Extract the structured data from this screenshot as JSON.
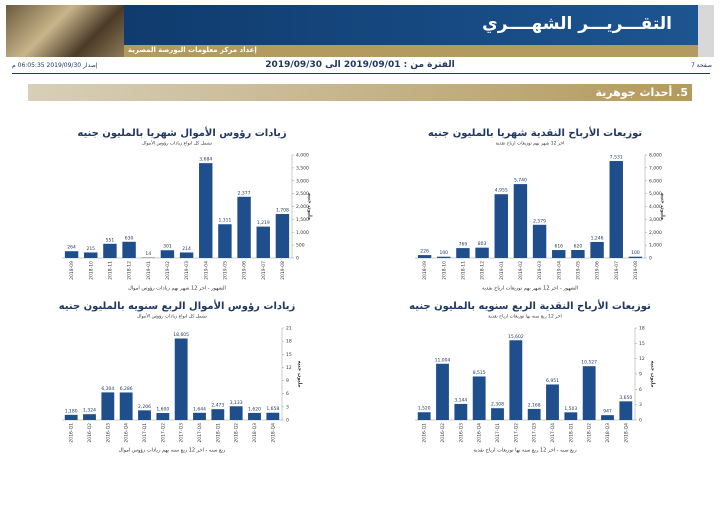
{
  "header": {
    "title": "التقـــريـــر الشهــــري",
    "prepared_by": "إعداد مركز معلومات البورصة المصرية",
    "page": "صفحة 7",
    "period": "الفترة من : 2019/09/01 الى 2019/09/30",
    "issued": "إصدار 2019/09/30 06:05:35 م",
    "section": "5. أحداث جوهرية"
  },
  "chart_data": [
    {
      "type": "bar",
      "title": "زيادات رؤوس الأموال شهريا بالمليون جنيه",
      "subtitle": "تشمل كل انواع زيادات رؤوس الأموال",
      "x_label": "الشهور - اخر 12 شهر بهم زيادات رؤوس اموال",
      "y_label": "مليون جنيه",
      "color": "#1f4e8c",
      "categories": [
        "2018-09",
        "2018-10",
        "2018-11",
        "2018-12",
        "2019-01",
        "2019-02",
        "2019-03",
        "2019-04",
        "2019-05",
        "2019-06",
        "2019-07",
        "2019-08"
      ],
      "values": [
        264,
        215,
        551,
        630,
        14,
        301,
        214,
        3684,
        1311,
        2377,
        1219,
        1708
      ],
      "value_labels": [
        "264",
        "215",
        "551",
        "630",
        "14",
        "301",
        "214",
        "3,684",
        "1,311",
        "2,377",
        "1,219",
        "1,708"
      ],
      "ylim": [
        0,
        4000
      ],
      "yticks": [
        0,
        500,
        {
          "value": 1000,
          "label": "1,000"
        },
        {
          "value": 1500,
          "label": "1,500"
        },
        {
          "value": 2000,
          "label": "2,000"
        },
        {
          "value": 2500,
          "label": "2,500"
        },
        {
          "value": 3000,
          "label": "3,000"
        },
        {
          "value": 3500,
          "label": "3,500"
        },
        {
          "value": 4000,
          "label": "4,000"
        }
      ]
    },
    {
      "type": "bar",
      "title": "توزيعات الأرباح النقدية شهريا بالمليون جنيه",
      "subtitle": "اخر 12 شهر بهم توزيعات ارباح نقدية",
      "x_label": "الشهور - اخر 12 شهر بهم توزيعات ارباح نقدية",
      "y_label": "مليون جنيه",
      "color": "#1f4e8c",
      "categories": [
        "2018-09",
        "2018-10",
        "2018-11",
        "2018-12",
        "2019-01",
        "2019-02",
        "2019-03",
        "2019-04",
        "2019-05",
        "2019-06",
        "2019-07",
        "2019-08"
      ],
      "values": [
        226,
        100,
        769,
        803,
        4955,
        5740,
        2579,
        616,
        620,
        1246,
        7531,
        100
      ],
      "value_labels": [
        "226",
        "100",
        "769",
        "803",
        "4,955",
        "5,740",
        "2,579",
        "616",
        "620",
        "1,246",
        "7,531",
        "100"
      ],
      "ylim": [
        0,
        8000
      ],
      "yticks": [
        0,
        {
          "value": 1000,
          "label": "1,000"
        },
        {
          "value": 2000,
          "label": "2,000"
        },
        {
          "value": 3000,
          "label": "3,000"
        },
        {
          "value": 4000,
          "label": "4,000"
        },
        {
          "value": 5000,
          "label": "5,000"
        },
        {
          "value": 6000,
          "label": "6,000"
        },
        {
          "value": 7000,
          "label": "7,000"
        },
        {
          "value": 8000,
          "label": "8,000"
        }
      ]
    },
    {
      "type": "bar",
      "title": "زيادات رؤوس الأموال الربع سنويه بالمليون جنيه",
      "subtitle": "تشمل كل انواع زيادات رؤوس الأموال",
      "x_label": "ربع سنه - اخر 12 ربع سنه بهم زيادات رؤوس اموال",
      "y_label": "مليون جنيه",
      "color": "#1f4e8c",
      "categories": [
        "2016-Q1",
        "2016-Q2",
        "2016-Q3",
        "2016-Q4",
        "2017-Q1",
        "2017-Q2",
        "2017-Q3",
        "2017-Q4",
        "2018-Q1",
        "2018-Q2",
        "2018-Q3",
        "2018-Q4"
      ],
      "values": [
        1.18,
        1.324,
        6.304,
        6.286,
        2.206,
        1.6,
        18.605,
        1.644,
        2.473,
        3.133,
        1.62,
        1.658
      ],
      "value_labels": [
        "1,180",
        "1,324",
        "6,304",
        "6,286",
        "2,206",
        "1,600",
        "18,605",
        "1,644",
        "2,473",
        "3,133",
        "1,620",
        "1,658"
      ],
      "ylim": [
        0,
        21
      ],
      "yticks": [
        0,
        3,
        6,
        9,
        12,
        15,
        18,
        21
      ]
    },
    {
      "type": "bar",
      "title": "توزيعات الأرباح النقدية الربع سنويه بالمليون جنيه",
      "subtitle": "اخر 12 ربع سنه بها توزيعات ارباح نقدية",
      "x_label": "ربع سنه - اخر 12 ربع سنه بها توزيعات ارباح نقدية",
      "y_label": "مليون جنيه",
      "color": "#1f4e8c",
      "categories": [
        "2016-Q1",
        "2016-Q2",
        "2016-Q3",
        "2016-Q4",
        "2017-Q1",
        "2017-Q2",
        "2017-Q3",
        "2017-Q4",
        "2018-Q1",
        "2018-Q2",
        "2018-Q3",
        "2018-Q4"
      ],
      "values": [
        1.52,
        11.004,
        3.144,
        8.515,
        2.308,
        15.602,
        2.168,
        6.951,
        1.503,
        10.527,
        0.947,
        3.65
      ],
      "value_labels": [
        "1,520",
        "11,004",
        "3,144",
        "8,515",
        "2,308",
        "15,602",
        "2,168",
        "6,951",
        "1,503",
        "10,527",
        "947",
        "3,650"
      ],
      "ylim": [
        0,
        18
      ],
      "yticks": [
        0,
        3,
        6,
        9,
        12,
        15,
        18
      ]
    }
  ]
}
